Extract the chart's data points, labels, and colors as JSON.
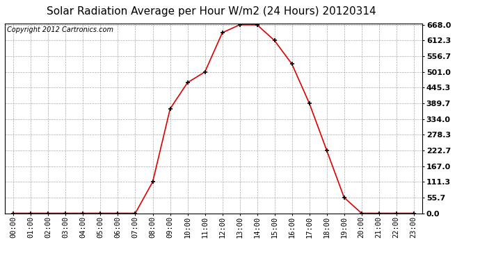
{
  "title": "Solar Radiation Average per Hour W/m2 (24 Hours) 20120314",
  "copyright": "Copyright 2012 Cartronics.com",
  "hours": [
    "00:00",
    "01:00",
    "02:00",
    "03:00",
    "04:00",
    "05:00",
    "06:00",
    "07:00",
    "08:00",
    "09:00",
    "10:00",
    "11:00",
    "12:00",
    "13:00",
    "14:00",
    "15:00",
    "16:00",
    "17:00",
    "18:00",
    "19:00",
    "20:00",
    "21:00",
    "22:00",
    "23:00"
  ],
  "values": [
    0.0,
    0.0,
    0.0,
    0.0,
    0.0,
    0.0,
    0.0,
    0.0,
    111.3,
    370.0,
    463.0,
    501.0,
    640.0,
    668.0,
    668.0,
    612.3,
    529.0,
    389.7,
    222.7,
    55.7,
    0.0,
    0.0,
    0.0,
    0.0
  ],
  "line_color": "#dd0000",
  "marker_color": "#000000",
  "bg_color": "#ffffff",
  "plot_bg_color": "#ffffff",
  "grid_color": "#aaaaaa",
  "ymin": 0.0,
  "ymax": 668.0,
  "yticks": [
    0.0,
    55.7,
    111.3,
    167.0,
    222.7,
    278.3,
    334.0,
    389.7,
    445.3,
    501.0,
    556.7,
    612.3,
    668.0
  ],
  "title_fontsize": 11,
  "copyright_fontsize": 7,
  "tick_fontsize": 7.5,
  "ytick_fontsize": 8
}
